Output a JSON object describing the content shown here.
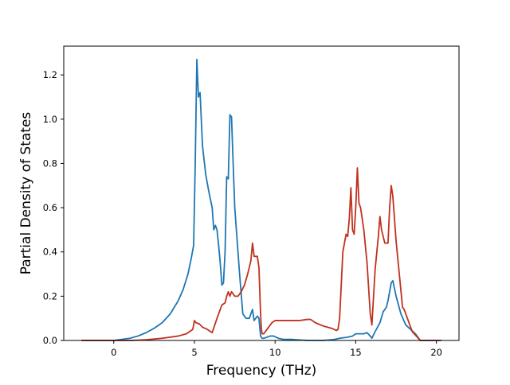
{
  "chart_data": {
    "type": "line",
    "title": "",
    "xlabel": "Frequency (THz)",
    "ylabel": "Partial Density of States",
    "xlim": [
      -3.1,
      21.4
    ],
    "ylim": [
      0,
      1.33
    ],
    "xticks": [
      0,
      5,
      10,
      15,
      20
    ],
    "yticks": [
      0.0,
      0.2,
      0.4,
      0.6,
      0.8,
      1.0,
      1.2
    ],
    "xtick_labels": [
      "0",
      "5",
      "10",
      "15",
      "20"
    ],
    "ytick_labels": [
      "0.0",
      "0.2",
      "0.4",
      "0.6",
      "0.8",
      "1.0",
      "1.2"
    ],
    "grid": false,
    "series": [
      {
        "color": "#1f77b4",
        "x": [
          -2.0,
          0.0,
          0.5,
          1.0,
          1.5,
          2.0,
          2.5,
          3.0,
          3.5,
          4.0,
          4.3,
          4.6,
          4.8,
          4.95,
          5.05,
          5.15,
          5.25,
          5.35,
          5.5,
          5.7,
          5.9,
          6.1,
          6.2,
          6.3,
          6.4,
          6.5,
          6.6,
          6.7,
          6.8,
          6.9,
          7.0,
          7.1,
          7.2,
          7.3,
          7.4,
          7.5,
          7.6,
          7.8,
          8.0,
          8.2,
          8.4,
          8.6,
          8.7,
          8.8,
          8.9,
          9.0,
          9.1,
          9.2,
          9.3,
          9.5,
          9.7,
          9.9,
          10.2,
          10.5,
          11.0,
          12.0,
          13.0,
          13.7,
          14.0,
          14.5,
          14.8,
          15.0,
          15.5,
          15.7,
          15.9,
          16.0,
          16.2,
          16.5,
          16.7,
          16.9,
          17.0,
          17.1,
          17.2,
          17.3,
          17.5,
          17.8,
          18.1,
          18.4,
          18.7,
          19.0,
          19.5,
          20.0,
          20.3
        ],
        "y": [
          0.0,
          0.0,
          0.005,
          0.01,
          0.02,
          0.035,
          0.055,
          0.08,
          0.12,
          0.18,
          0.23,
          0.3,
          0.37,
          0.43,
          0.8,
          1.27,
          1.1,
          1.12,
          0.88,
          0.75,
          0.67,
          0.6,
          0.5,
          0.52,
          0.5,
          0.43,
          0.35,
          0.25,
          0.26,
          0.4,
          0.74,
          0.73,
          1.02,
          1.01,
          0.8,
          0.6,
          0.5,
          0.3,
          0.12,
          0.1,
          0.1,
          0.14,
          0.09,
          0.1,
          0.11,
          0.1,
          0.02,
          0.01,
          0.01,
          0.015,
          0.02,
          0.02,
          0.01,
          0.005,
          0.005,
          0.0,
          0.0,
          0.005,
          0.01,
          0.015,
          0.02,
          0.03,
          0.03,
          0.035,
          0.02,
          0.01,
          0.04,
          0.08,
          0.13,
          0.15,
          0.18,
          0.22,
          0.26,
          0.27,
          0.2,
          0.12,
          0.07,
          0.05,
          0.03,
          0.0,
          0.0,
          0.0,
          0.0
        ]
      },
      {
        "color": "#c0311f",
        "x": [
          -2.0,
          0.0,
          1.0,
          2.0,
          3.0,
          4.0,
          4.5,
          4.9,
          5.0,
          5.1,
          5.3,
          5.5,
          5.8,
          6.1,
          6.4,
          6.5,
          6.7,
          6.9,
          7.0,
          7.1,
          7.2,
          7.3,
          7.5,
          7.7,
          7.9,
          8.1,
          8.3,
          8.5,
          8.6,
          8.7,
          8.8,
          8.9,
          9.0,
          9.1,
          9.15,
          9.2,
          9.3,
          9.5,
          9.8,
          10.0,
          10.5,
          11.0,
          11.5,
          12.0,
          12.2,
          12.5,
          13.0,
          13.5,
          13.8,
          13.9,
          14.0,
          14.2,
          14.4,
          14.5,
          14.6,
          14.7,
          14.8,
          14.9,
          15.0,
          15.1,
          15.2,
          15.3,
          15.5,
          15.7,
          15.9,
          16.0,
          16.2,
          16.4,
          16.5,
          16.6,
          16.8,
          17.0,
          17.1,
          17.2,
          17.3,
          17.5,
          17.7,
          17.9,
          18.0,
          18.2,
          18.5,
          19.0,
          20.0,
          20.3
        ],
        "y": [
          0.0,
          0.0,
          0.0,
          0.003,
          0.01,
          0.02,
          0.03,
          0.05,
          0.09,
          0.08,
          0.075,
          0.06,
          0.05,
          0.035,
          0.1,
          0.12,
          0.16,
          0.17,
          0.2,
          0.22,
          0.2,
          0.22,
          0.2,
          0.2,
          0.22,
          0.25,
          0.3,
          0.36,
          0.44,
          0.38,
          0.38,
          0.38,
          0.33,
          0.12,
          0.05,
          0.03,
          0.03,
          0.05,
          0.08,
          0.09,
          0.09,
          0.09,
          0.09,
          0.095,
          0.095,
          0.08,
          0.065,
          0.055,
          0.045,
          0.05,
          0.1,
          0.4,
          0.48,
          0.47,
          0.55,
          0.69,
          0.5,
          0.48,
          0.6,
          0.78,
          0.62,
          0.6,
          0.5,
          0.35,
          0.12,
          0.07,
          0.32,
          0.47,
          0.56,
          0.5,
          0.44,
          0.44,
          0.6,
          0.7,
          0.65,
          0.45,
          0.3,
          0.15,
          0.14,
          0.1,
          0.04,
          0.0,
          0.0,
          0.0
        ]
      }
    ]
  }
}
